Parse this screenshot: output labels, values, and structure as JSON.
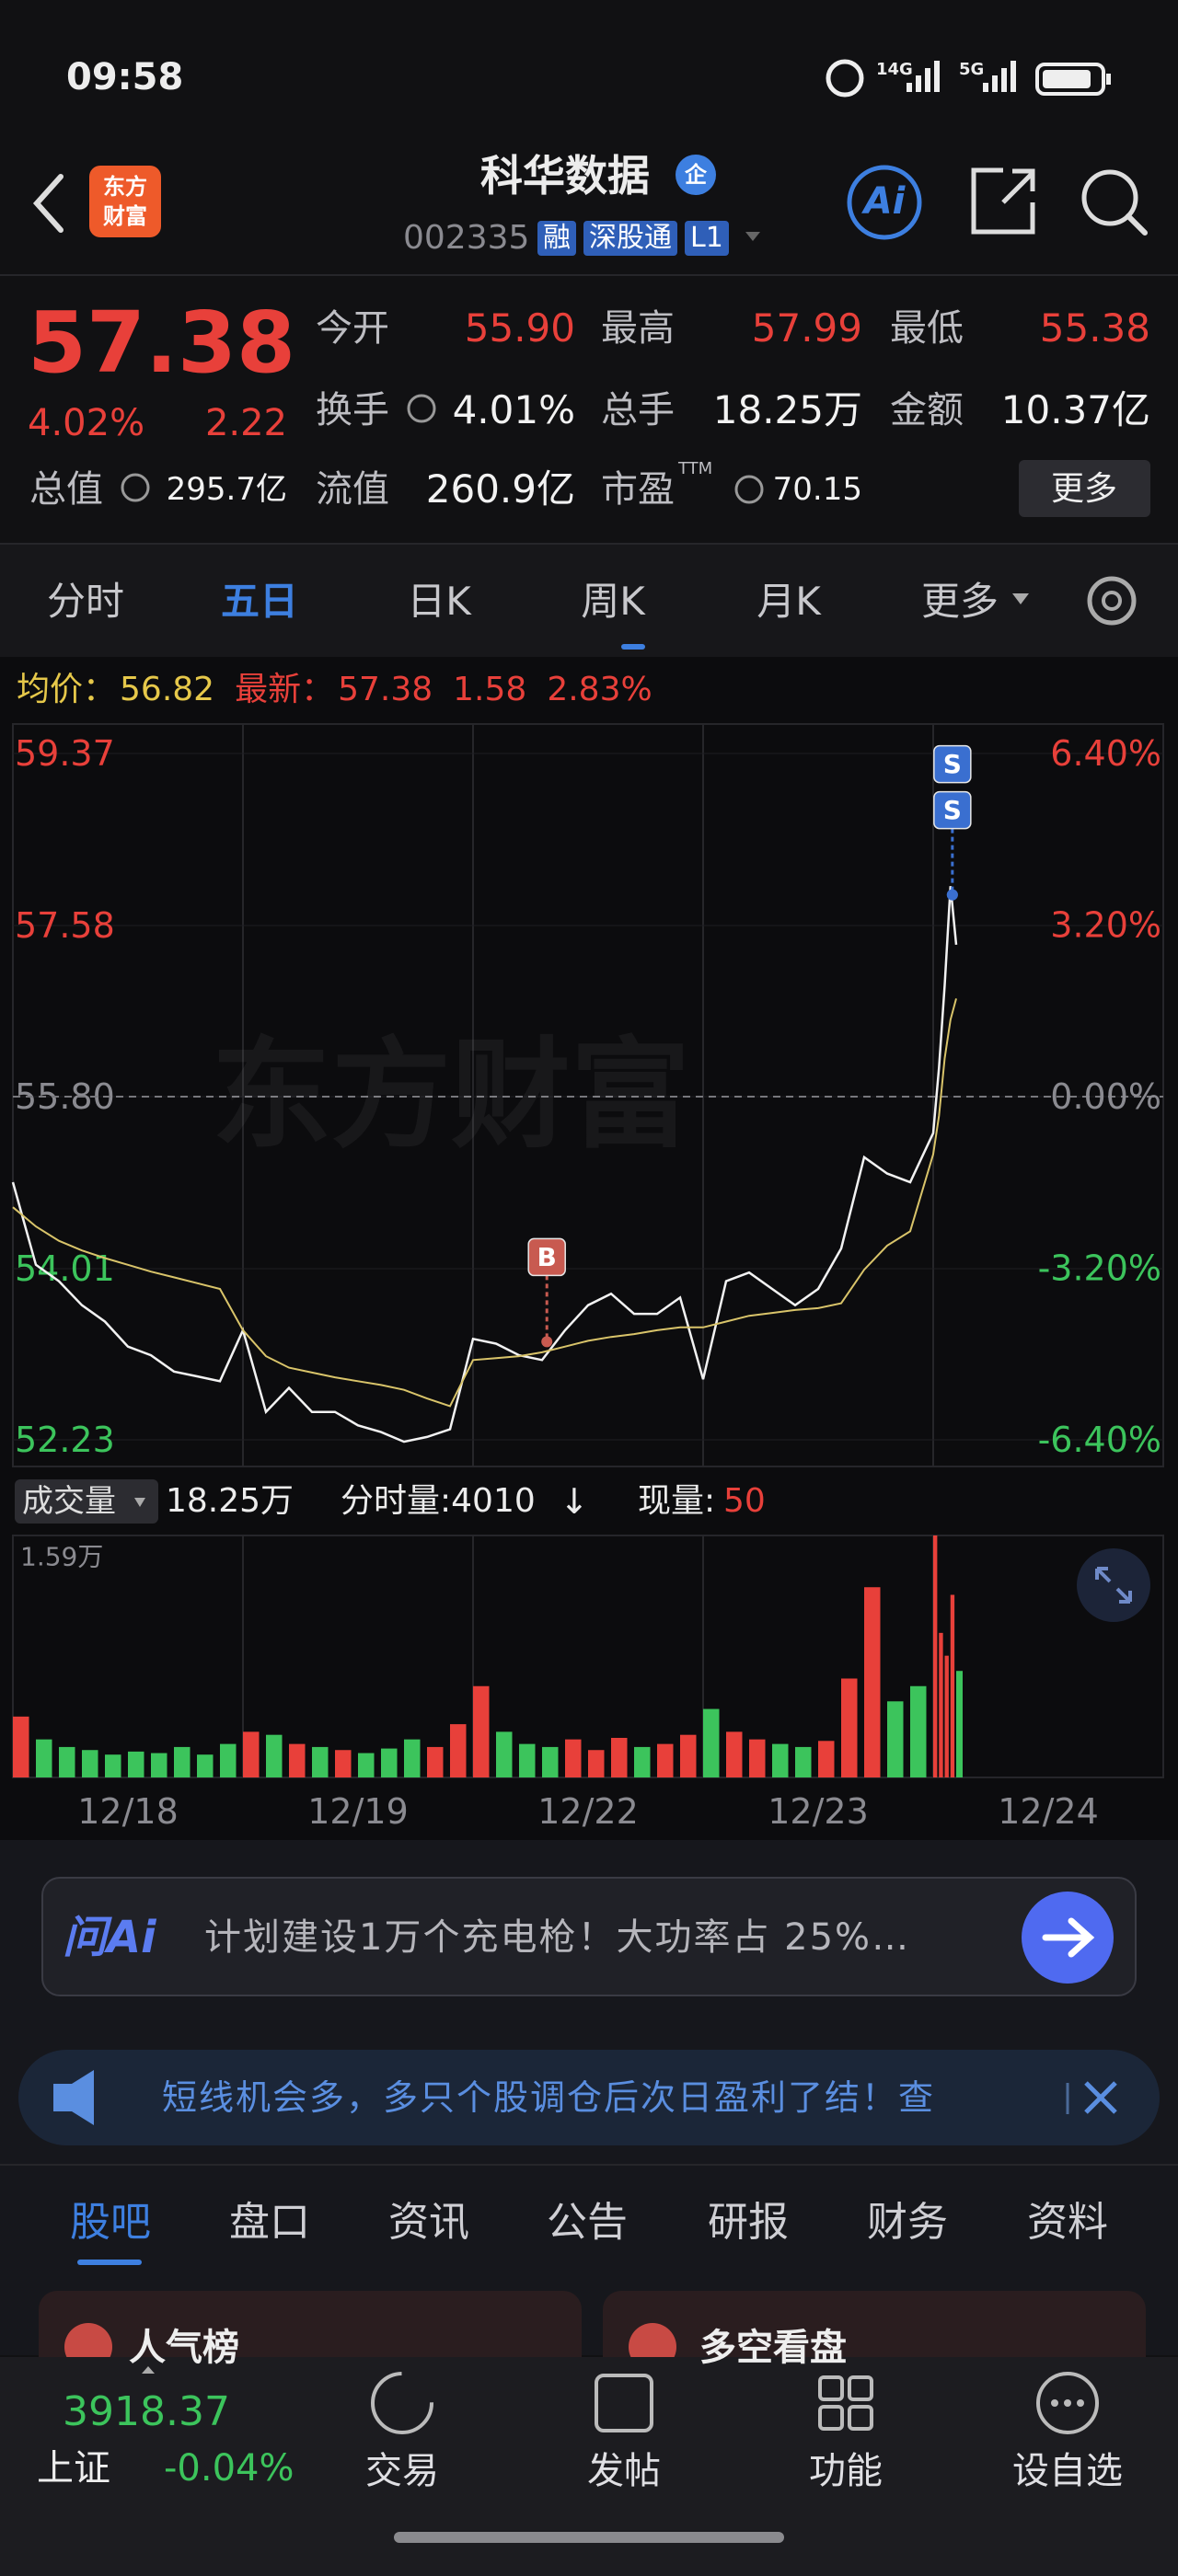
{
  "status_bar": {
    "time": "09:58",
    "net1": "14G",
    "net2": "5G"
  },
  "header": {
    "logo_top": "东方",
    "logo_bottom": "财富",
    "title": "科华数据",
    "badge": "企",
    "code": "002335",
    "tags": [
      "融",
      "深股通",
      "L1"
    ],
    "ai": "Ai"
  },
  "quote": {
    "price": "57.38",
    "change_pct": "4.02%",
    "change": "2.22",
    "fields": [
      {
        "label": "今开",
        "value": "55.90",
        "color": "#e8403a"
      },
      {
        "label": "最高",
        "value": "57.99",
        "color": "#e8403a"
      },
      {
        "label": "最低",
        "value": "55.38",
        "color": "#e8403a"
      },
      {
        "label": "换手",
        "value": "4.01%",
        "info": true
      },
      {
        "label": "总手",
        "value": "18.25万"
      },
      {
        "label": "金额",
        "value": "10.37亿"
      },
      {
        "label": "总值",
        "value": "295.7亿",
        "info": true
      },
      {
        "label": "流值",
        "value": "260.9亿"
      },
      {
        "label": "市盈",
        "sup": "TTM",
        "value": "70.15",
        "info": true
      }
    ],
    "more": "更多"
  },
  "tabs": {
    "items": [
      "分时",
      "五日",
      "日K",
      "周K",
      "月K",
      "更多"
    ],
    "active": 1
  },
  "legend": {
    "avg_label": "均价：",
    "avg": "56.82",
    "latest_label": "最新：",
    "latest": "57.38",
    "change": "1.58",
    "change_pct": "2.83%"
  },
  "watermark": "东方财富",
  "volume_legend": {
    "label": "成交量",
    "total": "18.25万",
    "tick_volume": "分时量:4010",
    "arrow": "↓",
    "now_label": "现量:",
    "now": "50"
  },
  "chart_data": [
    {
      "type": "line",
      "x": [
        0,
        24,
        48,
        72,
        96,
        120,
        144,
        168,
        192,
        216,
        240,
        264,
        288,
        312,
        336,
        360,
        384,
        408,
        432,
        456,
        480,
        504,
        528,
        552,
        576,
        600,
        624,
        648,
        672,
        696,
        720,
        744,
        768,
        792,
        816,
        840,
        864,
        888,
        912,
        936,
        960,
        966,
        972,
        978,
        984
      ],
      "xlim": [
        0,
        1200
      ],
      "ylim": [
        52.23,
        59.37
      ],
      "yticks": [
        52.23,
        54.01,
        {
          "value": 55.8,
          "label": "55.80"
        },
        57.58,
        59.37
      ],
      "y2lim": [
        -6.4,
        6.4
      ],
      "y2ticks": [
        {
          "value": -6.4,
          "label": "-6.40%"
        },
        {
          "value": -3.2,
          "label": "-3.20%"
        },
        {
          "value": 0,
          "label": "0.00%"
        },
        {
          "value": 3.2,
          "label": "3.20%"
        },
        {
          "value": 6.4,
          "label": "6.40%"
        }
      ],
      "series": [
        {
          "color": "#f2f2f2",
          "values": [
            54.91,
            54.05,
            53.88,
            53.63,
            53.46,
            53.2,
            53.11,
            52.94,
            52.89,
            52.84,
            53.37,
            52.52,
            52.77,
            52.52,
            52.52,
            52.38,
            52.31,
            52.21,
            52.26,
            52.34,
            53.28,
            53.23,
            53.11,
            53.06,
            53.37,
            53.63,
            53.75,
            53.54,
            53.54,
            53.71,
            52.86,
            53.88,
            53.97,
            53.8,
            53.63,
            53.8,
            54.22,
            55.17,
            55.0,
            54.91,
            55.42,
            56.1,
            56.96,
            57.99,
            57.38
          ]
        },
        {
          "color": "#d9c46a",
          "values": [
            54.65,
            54.45,
            54.3,
            54.2,
            54.12,
            54.05,
            53.98,
            53.92,
            53.86,
            53.8,
            53.37,
            53.1,
            52.98,
            52.93,
            52.88,
            52.84,
            52.8,
            52.75,
            52.66,
            52.58,
            53.06,
            53.08,
            53.1,
            53.14,
            53.2,
            53.26,
            53.3,
            53.33,
            53.37,
            53.4,
            53.4,
            53.46,
            53.52,
            53.55,
            53.58,
            53.6,
            53.65,
            54.0,
            54.25,
            54.4,
            55.2,
            55.6,
            56.2,
            56.6,
            56.82
          ]
        }
      ],
      "annotations": [
        {
          "text": "B",
          "x": 557,
          "y": 53.25,
          "color": "#c85a50"
        },
        {
          "text": "S",
          "x": 980,
          "y": 57.9,
          "color": "#3a6fd0"
        },
        {
          "text": "S",
          "x": 980,
          "y": 57.9,
          "color": "#3a6fd0"
        }
      ]
    },
    {
      "type": "bar",
      "x": [
        0,
        24,
        48,
        72,
        96,
        120,
        144,
        168,
        192,
        216,
        240,
        264,
        288,
        312,
        336,
        360,
        384,
        408,
        432,
        456,
        480,
        504,
        528,
        552,
        576,
        600,
        624,
        648,
        672,
        696,
        720,
        744,
        768,
        792,
        816,
        840,
        864,
        888,
        912,
        936,
        960,
        966,
        972,
        978,
        984
      ],
      "values": [
        4000,
        2500,
        2000,
        1800,
        1500,
        1700,
        1600,
        2000,
        1500,
        2200,
        3000,
        2800,
        2200,
        2000,
        1800,
        1600,
        1900,
        2500,
        2000,
        3500,
        6000,
        3000,
        2200,
        2000,
        2500,
        1800,
        2600,
        2000,
        2200,
        2800,
        4500,
        3000,
        2500,
        2200,
        2000,
        2400,
        6500,
        12500,
        5000,
        6000,
        15900,
        9500,
        8000,
        12000,
        7000
      ],
      "xlim": [
        0,
        1200
      ],
      "ylim": [
        0,
        15900
      ],
      "yticks": [
        {
          "value": 15900,
          "label": "1.59万"
        }
      ],
      "xticks": [
        {
          "value": 120,
          "label": "12/18"
        },
        {
          "value": 360,
          "label": "12/19"
        },
        {
          "value": 600,
          "label": "12/22"
        },
        {
          "value": 840,
          "label": "12/23"
        },
        {
          "value": 1080,
          "label": "12/24"
        }
      ],
      "up_color": "#e8403a",
      "down_color": "#3cc45c"
    }
  ],
  "ai_bar": {
    "logo": "问Ai",
    "text": "计划建设1万个充电枪！大功率占 25%…"
  },
  "notice": {
    "text": "短线机会多，多只个股调仓后次日盈利了结！查"
  },
  "bottom_tabs": {
    "items": [
      "股吧",
      "盘口",
      "资讯",
      "公告",
      "研报",
      "财务",
      "资料"
    ],
    "active": 0
  },
  "cards": [
    "人气榜",
    "多空看盘"
  ],
  "bottom_nav": {
    "index_value": "3918.37",
    "index_name": "上证",
    "index_change": "-0.04%",
    "items": [
      "交易",
      "发帖",
      "功能",
      "设自选"
    ]
  }
}
